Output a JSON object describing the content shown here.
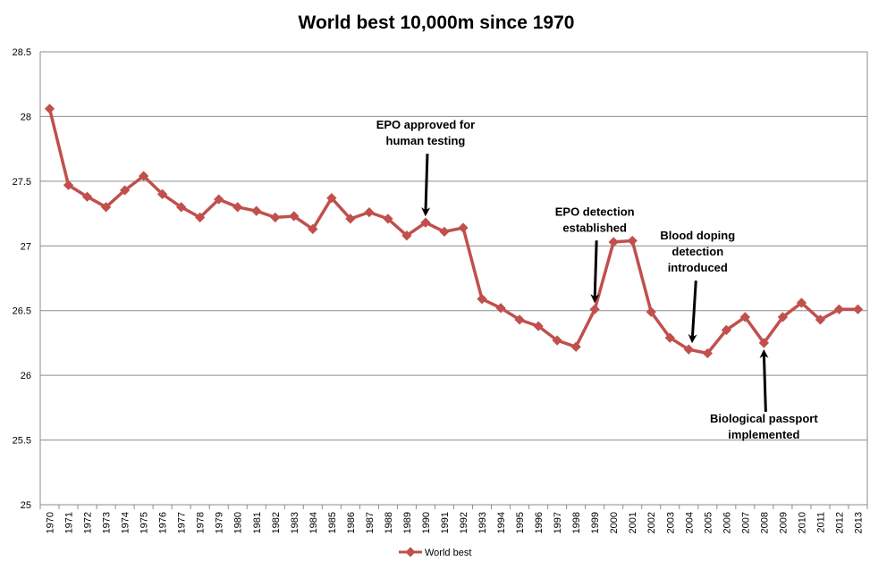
{
  "chart_data": {
    "type": "line",
    "title": "World best 10,000m since 1970",
    "xlabel": "",
    "ylabel": "",
    "ylim": [
      25,
      28.5
    ],
    "yticks": [
      "25",
      "25.5",
      "26",
      "26.5",
      "27",
      "27.5",
      "28",
      "28.5"
    ],
    "grid": true,
    "legend_position": "bottom",
    "categories": [
      "1970",
      "1971",
      "1972",
      "1973",
      "1974",
      "1975",
      "1976",
      "1977",
      "1978",
      "1979",
      "1980",
      "1981",
      "1982",
      "1983",
      "1984",
      "1985",
      "1986",
      "1987",
      "1988",
      "1989",
      "1990",
      "1991",
      "1992",
      "1993",
      "1994",
      "1995",
      "1996",
      "1997",
      "1998",
      "1999",
      "2000",
      "2001",
      "2002",
      "2003",
      "2004",
      "2005",
      "2006",
      "2007",
      "2008",
      "2009",
      "2010",
      "2011",
      "2012",
      "2013"
    ],
    "series": [
      {
        "name": "World best",
        "color": "#c0504d",
        "values": [
          28.06,
          27.47,
          27.38,
          27.3,
          27.43,
          27.54,
          27.4,
          27.3,
          27.22,
          27.36,
          27.3,
          27.27,
          27.22,
          27.23,
          27.13,
          27.37,
          27.21,
          27.26,
          27.21,
          27.08,
          27.18,
          27.11,
          27.14,
          26.59,
          26.52,
          26.43,
          26.38,
          26.27,
          26.22,
          26.51,
          27.03,
          27.04,
          26.49,
          26.29,
          26.2,
          26.17,
          26.35,
          26.45,
          26.25,
          26.45,
          26.56,
          26.43,
          26.51,
          26.51
        ]
      }
    ],
    "annotations": [
      {
        "lines": [
          "EPO approved for",
          "human testing"
        ],
        "year": "1990",
        "arrow": "down"
      },
      {
        "lines": [
          "EPO detection",
          "established"
        ],
        "year": "1999",
        "arrow": "down"
      },
      {
        "lines": [
          "Blood doping",
          "detection",
          "introduced"
        ],
        "year": "2004",
        "arrow": "down"
      },
      {
        "lines": [
          "Biological passport",
          "implemented"
        ],
        "year": "2008",
        "arrow": "up"
      }
    ]
  }
}
